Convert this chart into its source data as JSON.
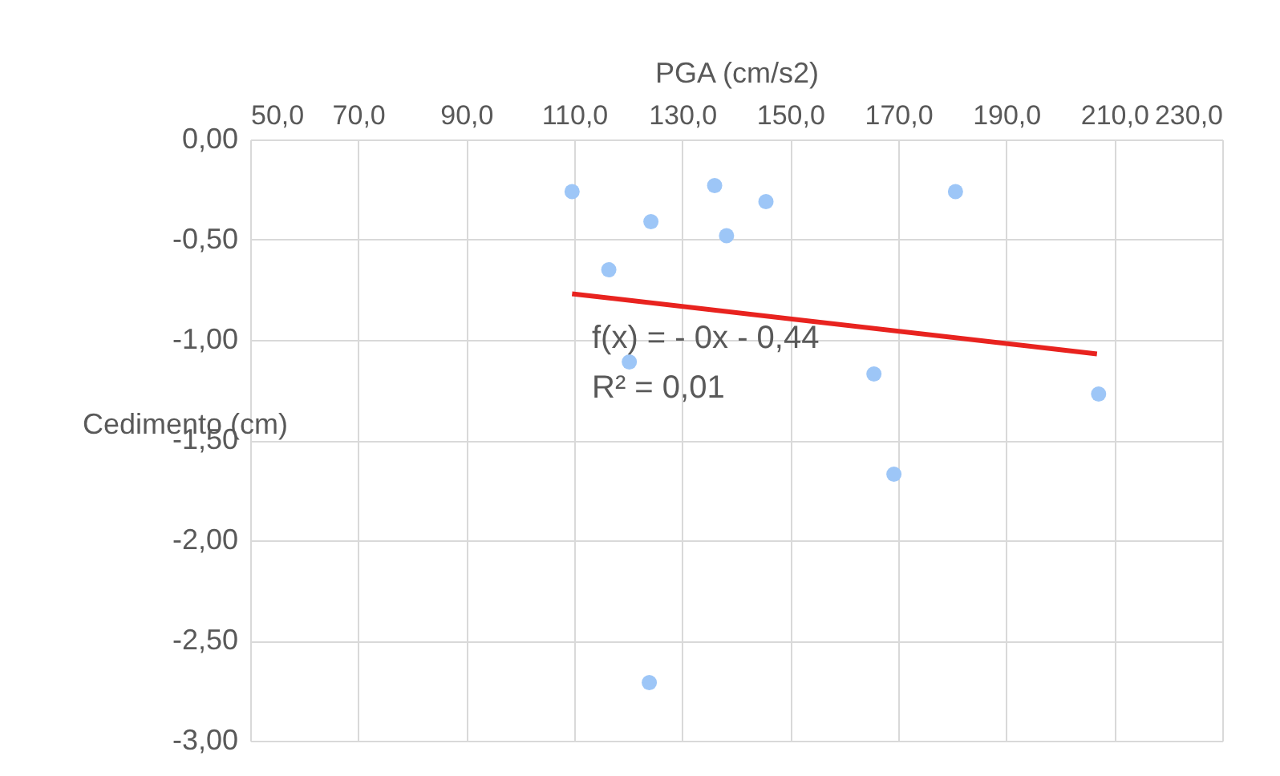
{
  "chart_data": {
    "type": "scatter",
    "xlabel": "PGA (cm/s2)",
    "ylabel": "Cedimento (cm)",
    "xlim": [
      50,
      230
    ],
    "ylim": [
      -3,
      0
    ],
    "xticks": [
      {
        "value": 50,
        "label": "50,0"
      },
      {
        "value": 70,
        "label": "70,0"
      },
      {
        "value": 90,
        "label": "90,0"
      },
      {
        "value": 110,
        "label": "110,0"
      },
      {
        "value": 130,
        "label": "130,0"
      },
      {
        "value": 150,
        "label": "150,0"
      },
      {
        "value": 170,
        "label": "170,0"
      },
      {
        "value": 190,
        "label": "190,0"
      },
      {
        "value": 210,
        "label": "210,0"
      },
      {
        "value": 230,
        "label": "230,0"
      }
    ],
    "yticks": [
      {
        "value": 0,
        "label": "0,00"
      },
      {
        "value": -0.5,
        "label": "-0,50"
      },
      {
        "value": -1,
        "label": "-1,00"
      },
      {
        "value": -1.5,
        "label": "-1,50"
      },
      {
        "value": -2,
        "label": "-2,00"
      },
      {
        "value": -2.5,
        "label": "-2,50"
      },
      {
        "value": -3,
        "label": "-3,00"
      }
    ],
    "grid": true,
    "annotations": [
      "f(x) =  - 0x - 0,44",
      "R² = 0,01"
    ],
    "series": [
      {
        "marker": "circle",
        "color": "#9dc6f7",
        "x": [
          109.6,
          136.0,
          145.5,
          124.2,
          138.2,
          180.6,
          116.4,
          120.2,
          165.5,
          207.1,
          169.2,
          123.9
        ],
        "values": [
          -0.26,
          -0.23,
          -0.31,
          -0.41,
          -0.48,
          -0.26,
          -0.65,
          -1.11,
          -1.17,
          -1.27,
          -1.67,
          -2.71
        ]
      },
      {
        "type": "line",
        "color": "#e8231f",
        "line_style": "solid",
        "x": [
          109.6,
          206.8
        ],
        "values": [
          -0.77,
          -1.07
        ]
      }
    ]
  }
}
